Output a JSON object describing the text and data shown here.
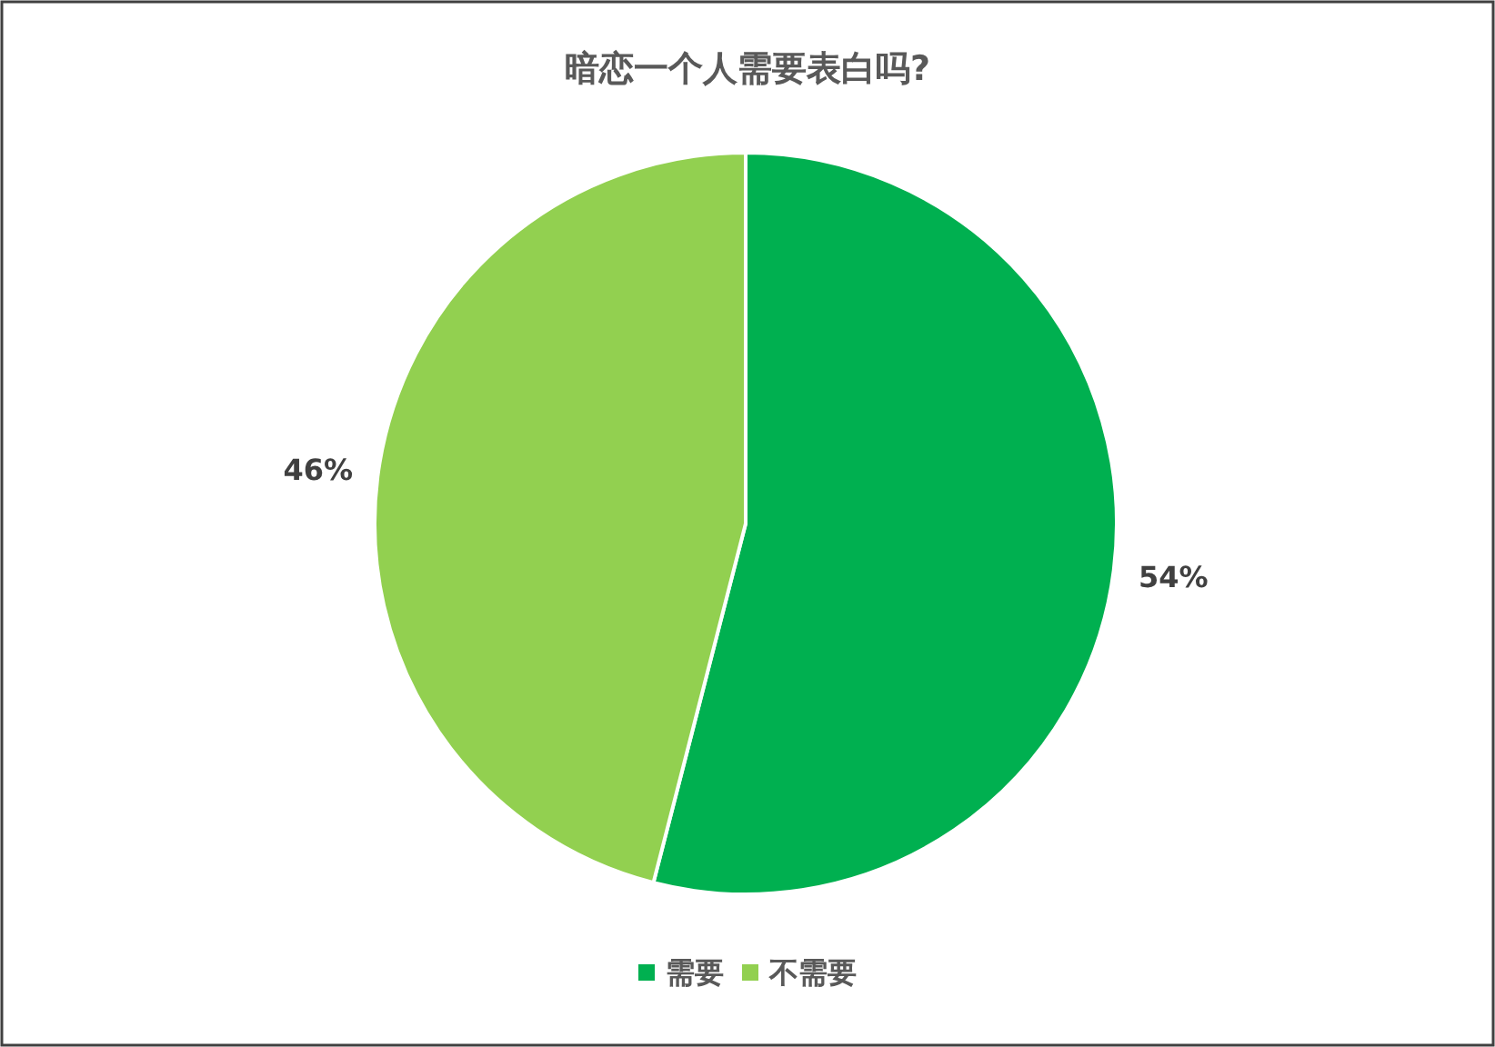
{
  "chart_data": {
    "type": "pie",
    "title": "暗恋一个人需要表白吗?",
    "categories": [
      "需要",
      "不需要"
    ],
    "values": [
      54,
      46
    ],
    "colors": [
      "#00b050",
      "#92d050"
    ],
    "value_labels": [
      "54%",
      "46%"
    ],
    "legend": "bottom"
  }
}
